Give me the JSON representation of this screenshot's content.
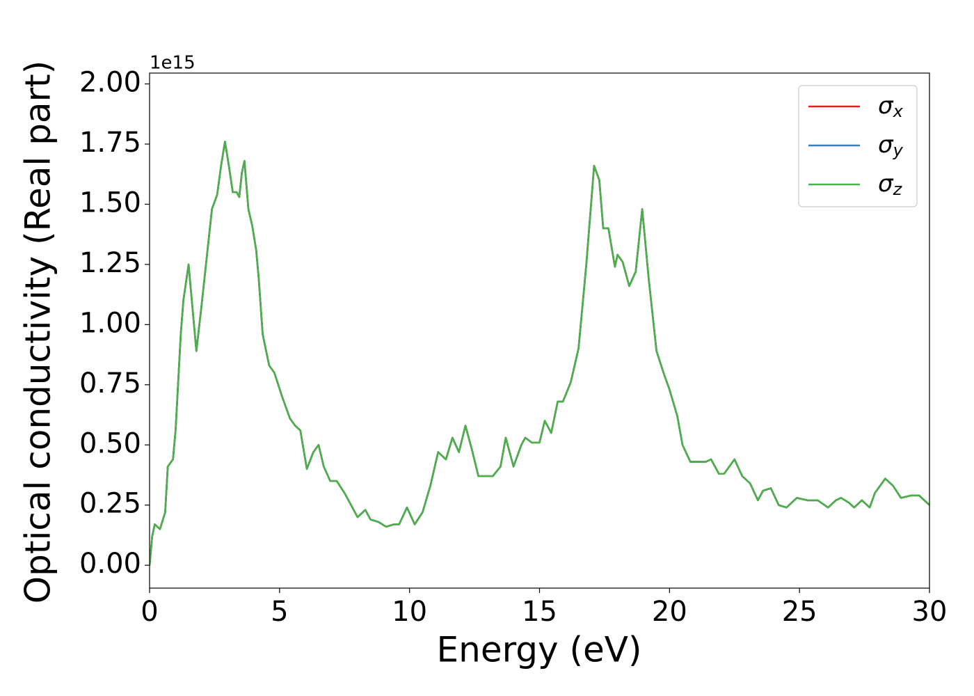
{
  "chart_data": {
    "type": "line",
    "xlabel": "Energy (eV)",
    "ylabel": "Optical conductivity (Real part)",
    "y_offset_label": "1e15",
    "xlim": [
      0,
      30
    ],
    "ylim": [
      -0.095,
      2.045
    ],
    "xticks": [
      0,
      5,
      10,
      15,
      20,
      25,
      30
    ],
    "yticks": [
      {
        "value": 0,
        "label": "0.00"
      },
      {
        "value": 0.25,
        "label": "0.25"
      },
      {
        "value": 0.5,
        "label": "0.50"
      },
      {
        "value": 0.75,
        "label": "0.75"
      },
      {
        "value": 1.0,
        "label": "1.00"
      },
      {
        "value": 1.25,
        "label": "1.25"
      },
      {
        "value": 1.5,
        "label": "1.50"
      },
      {
        "value": 1.75,
        "label": "1.75"
      },
      {
        "value": 2.0,
        "label": "2.00"
      }
    ],
    "legend": "upper right",
    "grid": false,
    "x": [
      0.0,
      0.1,
      0.2,
      0.4,
      0.6,
      0.7,
      0.9,
      1.0,
      1.2,
      1.3,
      1.5,
      1.6,
      1.8,
      2.0,
      2.2,
      2.4,
      2.6,
      2.75,
      2.9,
      3.05,
      3.2,
      3.35,
      3.45,
      3.55,
      3.65,
      3.8,
      3.95,
      4.1,
      4.2,
      4.35,
      4.6,
      4.8,
      5.1,
      5.4,
      5.6,
      5.8,
      6.05,
      6.3,
      6.5,
      6.7,
      6.95,
      7.2,
      7.5,
      7.8,
      8.0,
      8.3,
      8.5,
      8.8,
      9.1,
      9.4,
      9.6,
      9.9,
      10.2,
      10.5,
      10.8,
      11.1,
      11.4,
      11.65,
      11.9,
      12.15,
      12.4,
      12.65,
      13.0,
      13.2,
      13.5,
      13.7,
      14.0,
      14.3,
      14.45,
      14.7,
      15.0,
      15.2,
      15.45,
      15.7,
      15.9,
      16.2,
      16.5,
      16.8,
      17.1,
      17.3,
      17.45,
      17.65,
      17.9,
      18.0,
      18.2,
      18.45,
      18.7,
      18.95,
      19.2,
      19.5,
      19.8,
      20.0,
      20.3,
      20.5,
      20.8,
      21.1,
      21.4,
      21.6,
      21.9,
      22.1,
      22.5,
      22.8,
      23.1,
      23.4,
      23.6,
      23.9,
      24.2,
      24.5,
      24.9,
      25.3,
      25.7,
      26.1,
      26.4,
      26.6,
      26.9,
      27.1,
      27.4,
      27.7,
      27.9,
      28.3,
      28.6,
      28.9,
      29.3,
      29.6,
      30.0
    ],
    "series": [
      {
        "name": "σx",
        "color": "#e41a1c",
        "values": [
          0.0,
          0.12,
          0.17,
          0.15,
          0.22,
          0.41,
          0.44,
          0.56,
          0.96,
          1.1,
          1.25,
          1.13,
          0.89,
          1.08,
          1.28,
          1.48,
          1.54,
          1.66,
          1.76,
          1.66,
          1.55,
          1.55,
          1.53,
          1.63,
          1.68,
          1.48,
          1.41,
          1.31,
          1.19,
          0.96,
          0.83,
          0.8,
          0.7,
          0.61,
          0.58,
          0.56,
          0.4,
          0.47,
          0.5,
          0.41,
          0.35,
          0.35,
          0.3,
          0.24,
          0.2,
          0.23,
          0.19,
          0.18,
          0.16,
          0.17,
          0.17,
          0.24,
          0.17,
          0.22,
          0.33,
          0.47,
          0.44,
          0.53,
          0.47,
          0.58,
          0.48,
          0.37,
          0.37,
          0.37,
          0.41,
          0.53,
          0.41,
          0.5,
          0.53,
          0.51,
          0.51,
          0.6,
          0.55,
          0.68,
          0.68,
          0.76,
          0.9,
          1.25,
          1.66,
          1.6,
          1.4,
          1.4,
          1.24,
          1.29,
          1.26,
          1.16,
          1.22,
          1.48,
          1.19,
          0.89,
          0.79,
          0.73,
          0.62,
          0.5,
          0.43,
          0.43,
          0.43,
          0.44,
          0.38,
          0.38,
          0.44,
          0.37,
          0.34,
          0.27,
          0.31,
          0.32,
          0.25,
          0.24,
          0.28,
          0.27,
          0.27,
          0.24,
          0.27,
          0.28,
          0.26,
          0.24,
          0.27,
          0.24,
          0.3,
          0.36,
          0.33,
          0.28,
          0.29,
          0.29,
          0.25
        ]
      },
      {
        "name": "σy",
        "color": "#377eb8",
        "values": [
          0.0,
          0.12,
          0.17,
          0.15,
          0.22,
          0.41,
          0.44,
          0.56,
          0.96,
          1.1,
          1.25,
          1.13,
          0.89,
          1.08,
          1.28,
          1.48,
          1.54,
          1.66,
          1.76,
          1.66,
          1.55,
          1.55,
          1.53,
          1.63,
          1.68,
          1.48,
          1.41,
          1.31,
          1.19,
          0.96,
          0.83,
          0.8,
          0.7,
          0.61,
          0.58,
          0.56,
          0.4,
          0.47,
          0.5,
          0.41,
          0.35,
          0.35,
          0.3,
          0.24,
          0.2,
          0.23,
          0.19,
          0.18,
          0.16,
          0.17,
          0.17,
          0.24,
          0.17,
          0.22,
          0.33,
          0.47,
          0.44,
          0.53,
          0.47,
          0.58,
          0.48,
          0.37,
          0.37,
          0.37,
          0.41,
          0.53,
          0.41,
          0.5,
          0.53,
          0.51,
          0.51,
          0.6,
          0.55,
          0.68,
          0.68,
          0.76,
          0.9,
          1.25,
          1.66,
          1.6,
          1.4,
          1.4,
          1.24,
          1.29,
          1.26,
          1.16,
          1.22,
          1.48,
          1.19,
          0.89,
          0.79,
          0.73,
          0.62,
          0.5,
          0.43,
          0.43,
          0.43,
          0.44,
          0.38,
          0.38,
          0.44,
          0.37,
          0.34,
          0.27,
          0.31,
          0.32,
          0.25,
          0.24,
          0.28,
          0.27,
          0.27,
          0.24,
          0.27,
          0.28,
          0.26,
          0.24,
          0.27,
          0.24,
          0.3,
          0.36,
          0.33,
          0.28,
          0.29,
          0.29,
          0.25
        ]
      },
      {
        "name": "σz",
        "color": "#4daf4a",
        "values": [
          0.0,
          0.12,
          0.17,
          0.15,
          0.22,
          0.41,
          0.44,
          0.56,
          0.96,
          1.1,
          1.25,
          1.13,
          0.89,
          1.08,
          1.28,
          1.48,
          1.54,
          1.66,
          1.76,
          1.66,
          1.55,
          1.55,
          1.53,
          1.63,
          1.68,
          1.48,
          1.41,
          1.31,
          1.19,
          0.96,
          0.83,
          0.8,
          0.7,
          0.61,
          0.58,
          0.56,
          0.4,
          0.47,
          0.5,
          0.41,
          0.35,
          0.35,
          0.3,
          0.24,
          0.2,
          0.23,
          0.19,
          0.18,
          0.16,
          0.17,
          0.17,
          0.24,
          0.17,
          0.22,
          0.33,
          0.47,
          0.44,
          0.53,
          0.47,
          0.58,
          0.48,
          0.37,
          0.37,
          0.37,
          0.41,
          0.53,
          0.41,
          0.5,
          0.53,
          0.51,
          0.51,
          0.6,
          0.55,
          0.68,
          0.68,
          0.76,
          0.9,
          1.25,
          1.66,
          1.6,
          1.4,
          1.4,
          1.24,
          1.29,
          1.26,
          1.16,
          1.22,
          1.48,
          1.19,
          0.89,
          0.79,
          0.73,
          0.62,
          0.5,
          0.43,
          0.43,
          0.43,
          0.44,
          0.38,
          0.38,
          0.44,
          0.37,
          0.34,
          0.27,
          0.31,
          0.32,
          0.25,
          0.24,
          0.28,
          0.27,
          0.27,
          0.24,
          0.27,
          0.28,
          0.26,
          0.24,
          0.27,
          0.24,
          0.3,
          0.36,
          0.33,
          0.28,
          0.29,
          0.29,
          0.25
        ]
      }
    ]
  }
}
